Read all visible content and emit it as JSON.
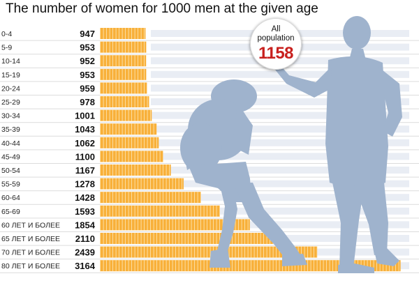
{
  "title": "The number of women for 1000 men at the given age",
  "callout": {
    "label": "All population",
    "value": "1158"
  },
  "colors": {
    "bar": "#f8b03a",
    "track": "#e9edf4",
    "silhouette": "#9fb3cd",
    "callout_value": "#c8201e"
  },
  "chart_data": {
    "type": "bar",
    "orientation": "horizontal",
    "title": "The number of women for 1000 men at the given age",
    "categories": [
      "0-4",
      "5-9",
      "10-14",
      "15-19",
      "20-24",
      "25-29",
      "30-34",
      "35-39",
      "40-44",
      "45-49",
      "50-54",
      "55-59",
      "60-64",
      "65-69",
      "60 ЛЕТ И БОЛЕЕ",
      "65 ЛЕТ И БОЛЕЕ",
      "70 ЛЕТ И БОЛЕЕ",
      "80 ЛЕТ И БОЛЕЕ"
    ],
    "values": [
      947,
      953,
      952,
      953,
      959,
      978,
      1001,
      1043,
      1062,
      1100,
      1167,
      1278,
      1428,
      1593,
      1854,
      2110,
      2439,
      3164
    ],
    "xlim": [
      550,
      3300
    ],
    "xlabel": "",
    "ylabel": "",
    "grid": false,
    "legend": "none",
    "value_labels": true,
    "annotation": {
      "label": "All population",
      "value": 1158
    }
  }
}
